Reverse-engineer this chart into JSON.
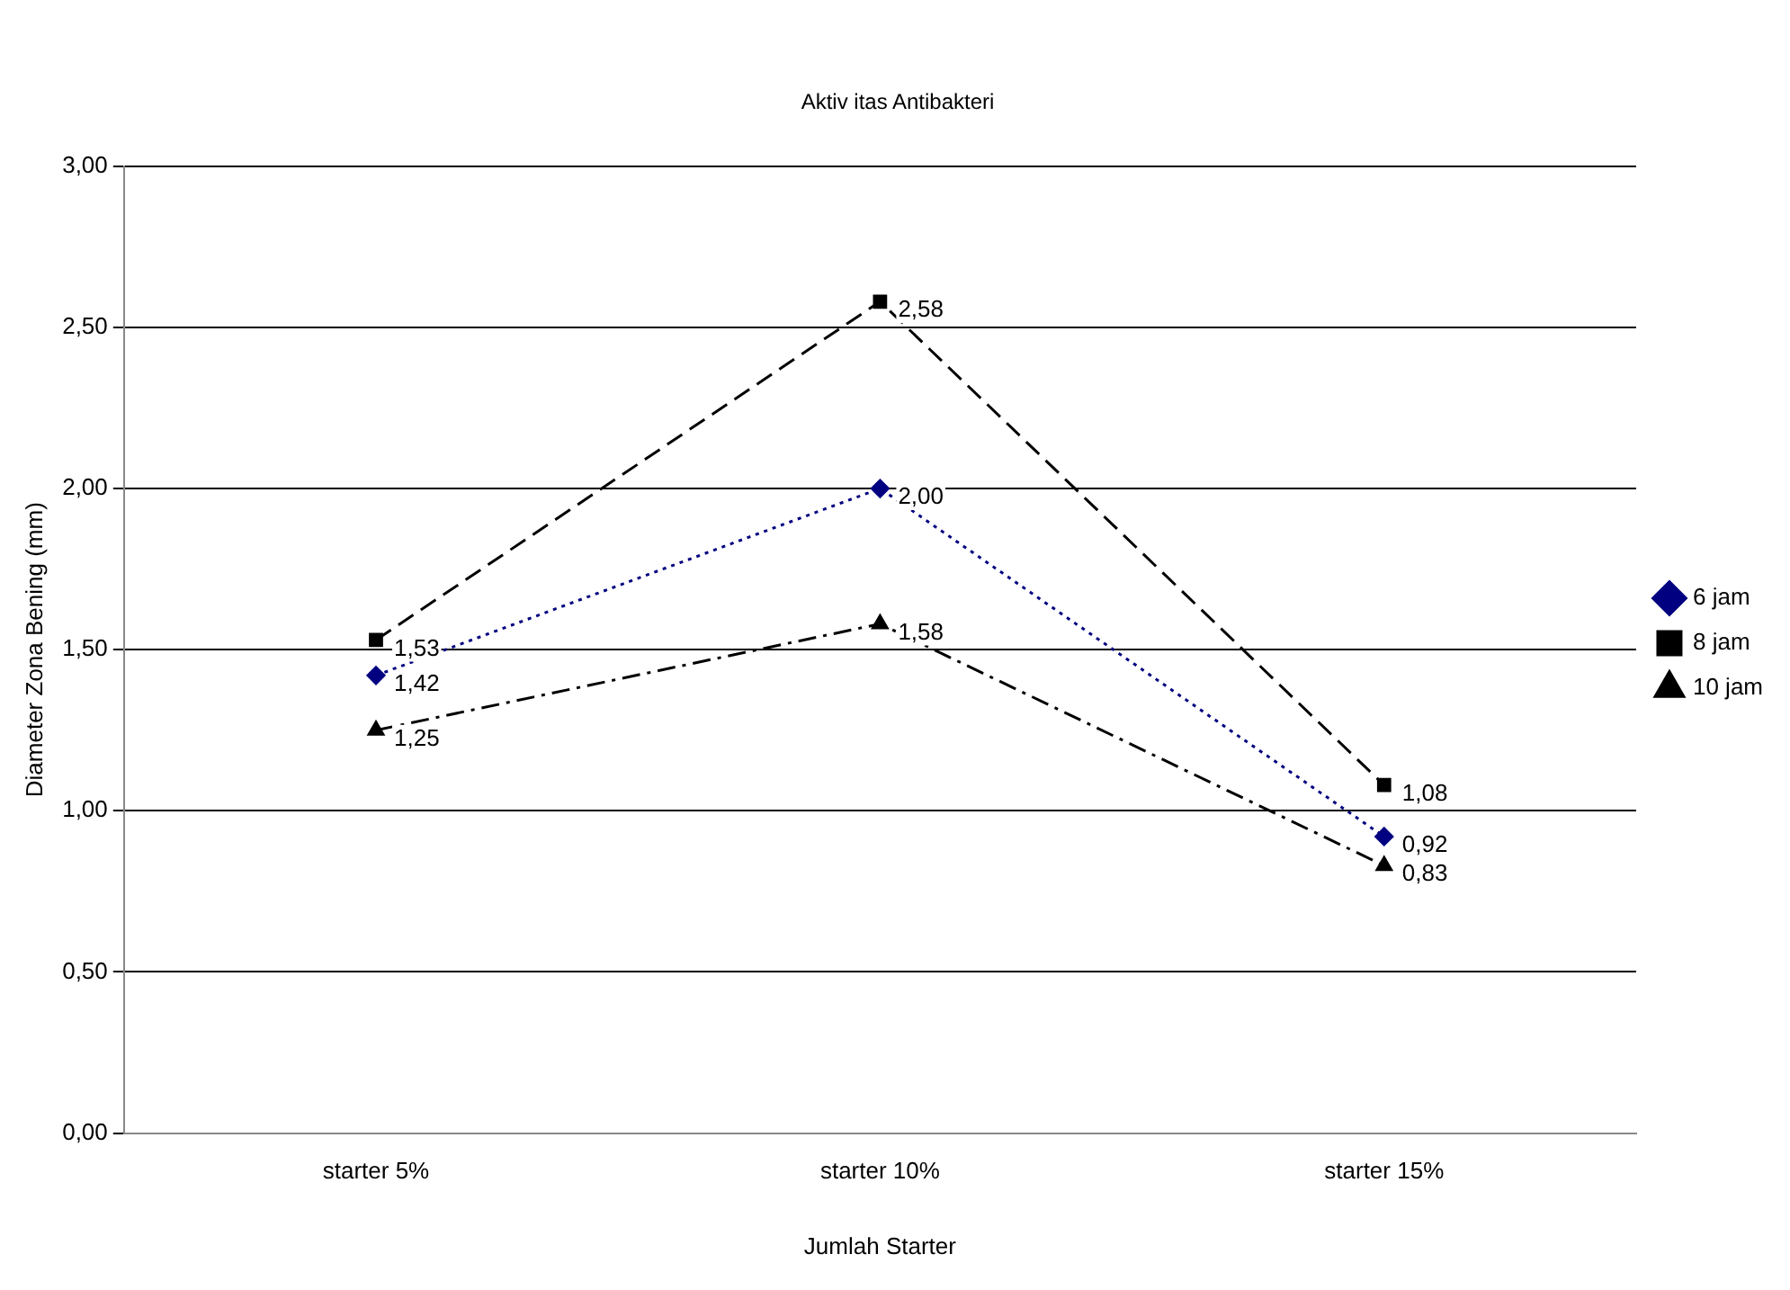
{
  "chart_data": {
    "type": "line",
    "title": "Aktiv itas Antibakteri",
    "xlabel": "Jumlah Starter",
    "ylabel": "Diameter Zona Bening (mm)",
    "categories": [
      "starter 5%",
      "starter 10%",
      "starter 15%"
    ],
    "ylim": [
      0,
      3
    ],
    "yticks": [
      {
        "value": 0,
        "label": "0,00"
      },
      {
        "value": 0.5,
        "label": "0,50"
      },
      {
        "value": 1,
        "label": "1,00"
      },
      {
        "value": 1.5,
        "label": "1,50"
      },
      {
        "value": 2,
        "label": "2,00"
      },
      {
        "value": 2.5,
        "label": "2,50"
      },
      {
        "value": 3,
        "label": "3,00"
      }
    ],
    "grid": "y",
    "legend": "right",
    "series": [
      {
        "name": "6 jam",
        "color": "#000080",
        "values": [
          1.42,
          2.0,
          0.92
        ],
        "value_labels": [
          "1,42",
          "2,00",
          "0,92"
        ],
        "marker": "diamond",
        "line_style": "dotted"
      },
      {
        "name": "8 jam",
        "color": "#000000",
        "values": [
          1.53,
          2.58,
          1.08
        ],
        "value_labels": [
          "1,53",
          "2,58",
          "1,08"
        ],
        "marker": "square",
        "line_style": "dashed"
      },
      {
        "name": "10 jam",
        "color": "#000000",
        "values": [
          1.25,
          1.58,
          0.83
        ],
        "value_labels": [
          "1,25",
          "1,58",
          "0,83"
        ],
        "marker": "triangle",
        "line_style": "dashdot"
      }
    ]
  }
}
